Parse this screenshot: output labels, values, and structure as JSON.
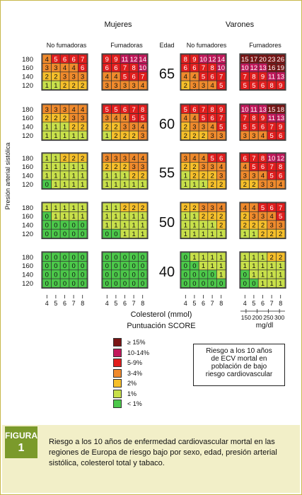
{
  "headers": {
    "mujeres": "Mujeres",
    "varones": "Varones",
    "no_fumadoras": "No fumadoras",
    "fumadoras": "Fumadoras",
    "edad": "Edad",
    "no_fumadores": "No fumadores",
    "fumadores": "Fumadores"
  },
  "y_axis_label": "Presión arterial sistólica",
  "x_axis_label": "Colesterol (mmol)",
  "mgdl_label": "mg/dl",
  "score_title": "Puntuación SCORE",
  "info_box": [
    "Riesgo a los 10 años",
    "de ECV mortal en",
    "población de bajo",
    "riesgo cardiovascular"
  ],
  "figure": {
    "word": "FIGURA",
    "number": "1"
  },
  "caption": "Riesgo a los 10 años de enfermedad cardiovascular mortal en las regiones de Europa de riesgo bajo por sexo, edad, presión arterial sistólica, colesterol total y tabaco.",
  "legend": [
    {
      "label": "≥ 15%",
      "color": "#7a1515"
    },
    {
      "label": "10-14%",
      "color": "#c2185b"
    },
    {
      "label": "5-9%",
      "color": "#e11d1d"
    },
    {
      "label": "3-4%",
      "color": "#f08a2c"
    },
    {
      "label": "2%",
      "color": "#f6bf2a"
    },
    {
      "label": "1%",
      "color": "#c8e04a"
    },
    {
      "label": "< 1%",
      "color": "#4cc94a"
    }
  ],
  "chart_data": {
    "type": "heatmap",
    "title": "Puntuación SCORE",
    "sbp_levels": [
      "180",
      "160",
      "140",
      "120"
    ],
    "cholesterol_mmol": [
      "4",
      "5",
      "6",
      "7",
      "8"
    ],
    "cholesterol_mgdl": [
      "150",
      "200",
      "250",
      "300"
    ],
    "ages": [
      "65",
      "60",
      "55",
      "50",
      "40"
    ],
    "groups": [
      "Mujeres No fumadoras",
      "Mujeres Fumadoras",
      "Varones No fumadores",
      "Varones Fumadores"
    ],
    "values": {
      "65": {
        "women_nonsmokers": [
          [
            4,
            5,
            6,
            6,
            7
          ],
          [
            3,
            3,
            4,
            4,
            6
          ],
          [
            2,
            2,
            3,
            3,
            3
          ],
          [
            1,
            1,
            2,
            2,
            2
          ]
        ],
        "women_smokers": [
          [
            9,
            9,
            11,
            12,
            14
          ],
          [
            6,
            6,
            7,
            8,
            10
          ],
          [
            4,
            4,
            5,
            6,
            7
          ],
          [
            3,
            3,
            3,
            3,
            4
          ]
        ],
        "men_nonsmokers": [
          [
            8,
            9,
            10,
            12,
            14
          ],
          [
            6,
            6,
            7,
            8,
            10
          ],
          [
            4,
            4,
            5,
            6,
            7
          ],
          [
            2,
            3,
            3,
            4,
            5
          ]
        ],
        "men_smokers": [
          [
            15,
            17,
            20,
            23,
            26
          ],
          [
            10,
            12,
            13,
            16,
            19
          ],
          [
            7,
            8,
            9,
            11,
            13
          ],
          [
            5,
            5,
            6,
            8,
            9
          ]
        ]
      },
      "60": {
        "women_nonsmokers": [
          [
            3,
            3,
            3,
            4,
            4
          ],
          [
            2,
            2,
            2,
            3,
            3
          ],
          [
            1,
            1,
            1,
            2,
            2
          ],
          [
            1,
            1,
            1,
            1,
            1
          ]
        ],
        "women_smokers": [
          [
            5,
            5,
            6,
            7,
            8
          ],
          [
            3,
            4,
            4,
            5,
            5
          ],
          [
            2,
            2,
            3,
            3,
            4
          ],
          [
            1,
            2,
            2,
            2,
            3
          ]
        ],
        "men_nonsmokers": [
          [
            5,
            6,
            7,
            8,
            9
          ],
          [
            4,
            4,
            5,
            6,
            7
          ],
          [
            2,
            3,
            3,
            4,
            5
          ],
          [
            2,
            2,
            2,
            3,
            3
          ]
        ],
        "men_smokers": [
          [
            10,
            11,
            13,
            15,
            18
          ],
          [
            7,
            8,
            9,
            11,
            13
          ],
          [
            5,
            5,
            6,
            7,
            9
          ],
          [
            3,
            3,
            4,
            5,
            6
          ]
        ]
      },
      "55": {
        "women_nonsmokers": [
          [
            1,
            1,
            2,
            2,
            2
          ],
          [
            1,
            1,
            1,
            1,
            1
          ],
          [
            1,
            1,
            1,
            1,
            1
          ],
          [
            0,
            1,
            1,
            1,
            1
          ]
        ],
        "women_smokers": [
          [
            3,
            3,
            3,
            4,
            4
          ],
          [
            2,
            2,
            2,
            3,
            3
          ],
          [
            1,
            1,
            1,
            2,
            2
          ],
          [
            1,
            1,
            1,
            1,
            1
          ]
        ],
        "men_nonsmokers": [
          [
            3,
            4,
            4,
            5,
            6
          ],
          [
            2,
            2,
            3,
            3,
            4
          ],
          [
            1,
            2,
            2,
            2,
            3
          ],
          [
            1,
            1,
            1,
            2,
            2
          ]
        ],
        "men_smokers": [
          [
            6,
            7,
            8,
            10,
            12
          ],
          [
            4,
            5,
            6,
            7,
            8
          ],
          [
            3,
            3,
            4,
            5,
            6
          ],
          [
            2,
            2,
            3,
            3,
            4
          ]
        ]
      },
      "50": {
        "women_nonsmokers": [
          [
            1,
            1,
            1,
            1,
            1
          ],
          [
            0,
            1,
            1,
            1,
            1
          ],
          [
            0,
            0,
            0,
            0,
            0
          ],
          [
            0,
            0,
            0,
            0,
            0
          ]
        ],
        "women_smokers": [
          [
            1,
            1,
            2,
            2,
            2
          ],
          [
            1,
            1,
            1,
            1,
            1
          ],
          [
            1,
            1,
            1,
            1,
            1
          ],
          [
            0,
            0,
            1,
            1,
            1
          ]
        ],
        "men_nonsmokers": [
          [
            2,
            2,
            3,
            3,
            4
          ],
          [
            1,
            1,
            2,
            2,
            2
          ],
          [
            1,
            1,
            1,
            1,
            2
          ],
          [
            1,
            1,
            1,
            1,
            1
          ]
        ],
        "men_smokers": [
          [
            4,
            4,
            5,
            6,
            7
          ],
          [
            2,
            3,
            3,
            4,
            5
          ],
          [
            2,
            2,
            2,
            3,
            3
          ],
          [
            1,
            1,
            2,
            2,
            2
          ]
        ]
      },
      "40": {
        "women_nonsmokers": [
          [
            0,
            0,
            0,
            0,
            0
          ],
          [
            0,
            0,
            0,
            0,
            0
          ],
          [
            0,
            0,
            0,
            0,
            0
          ],
          [
            0,
            0,
            0,
            0,
            0
          ]
        ],
        "women_smokers": [
          [
            0,
            0,
            0,
            0,
            0
          ],
          [
            0,
            0,
            0,
            0,
            0
          ],
          [
            0,
            0,
            0,
            0,
            0
          ],
          [
            0,
            0,
            0,
            0,
            0
          ]
        ],
        "men_nonsmokers": [
          [
            0,
            1,
            1,
            1,
            1
          ],
          [
            0,
            0,
            1,
            1,
            1
          ],
          [
            0,
            0,
            0,
            0,
            1
          ],
          [
            0,
            0,
            0,
            0,
            0
          ]
        ],
        "men_smokers": [
          [
            1,
            1,
            1,
            2,
            2
          ],
          [
            1,
            1,
            1,
            1,
            1
          ],
          [
            0,
            1,
            1,
            1,
            1
          ],
          [
            0,
            0,
            1,
            1,
            1
          ]
        ]
      }
    }
  }
}
